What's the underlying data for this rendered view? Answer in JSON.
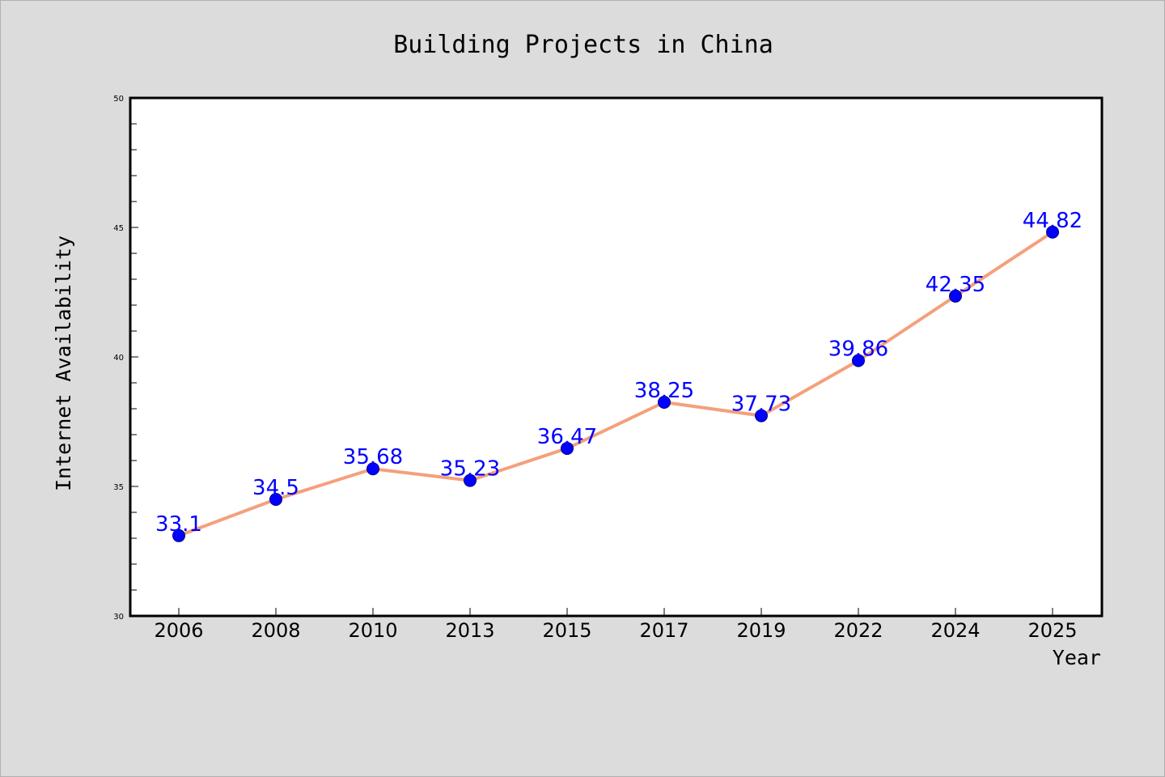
{
  "chart_data": {
    "type": "line",
    "title": "Building Projects in China",
    "xlabel": "Year",
    "ylabel": "Internet Availability",
    "categories": [
      "2006",
      "2008",
      "2010",
      "2013",
      "2015",
      "2017",
      "2019",
      "2022",
      "2024",
      "2025"
    ],
    "series": [
      {
        "values": [
          33.1,
          34.5,
          35.68,
          35.23,
          36.47,
          38.25,
          37.73,
          39.86,
          42.35,
          44.82
        ]
      }
    ],
    "data_labels": [
      "33.1",
      "34.5",
      "35.68",
      "35.23",
      "36.47",
      "38.25",
      "37.73",
      "39.86",
      "42.35",
      "44.82"
    ],
    "ylim": [
      30,
      50
    ],
    "yticks": [
      "30",
      "35",
      "40",
      "45",
      "50"
    ],
    "grid": false,
    "legend": "none",
    "colors": {
      "background": "#dcdcdc",
      "plot_background": "#ffffff",
      "line": "#f4a07c",
      "marker": "#0000ff",
      "marker_edge": "#000080",
      "data_label": "#0000ff"
    }
  }
}
